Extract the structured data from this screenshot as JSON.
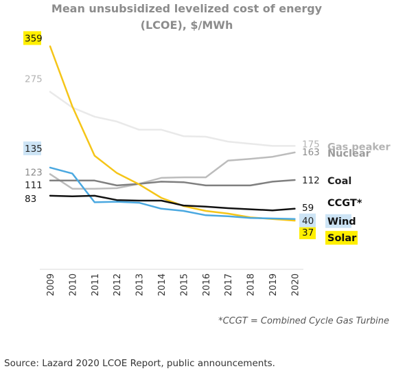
{
  "chart_data": {
    "type": "line",
    "title": "Mean unsubsidized levelized cost of energy (LCOE), $/MWh",
    "title_lines": [
      "Mean unsubsidized levelized cost of energy",
      "(LCOE), $/MWh"
    ],
    "x": [
      "2009",
      "2010",
      "2011",
      "2012",
      "2013",
      "2014",
      "2015",
      "2016",
      "2017",
      "2018",
      "2019",
      "2020"
    ],
    "ylim": [
      0,
      380
    ],
    "grid": false,
    "legend": "direct labels at right end of lines",
    "series": [
      {
        "name": "Gas peaker",
        "color": "#e9e9e9",
        "label_color": "#b3b3b3",
        "start_color": "#b3b3b3",
        "end_color": "#b3b3b3",
        "values": [
          275,
          246,
          229,
          220,
          205,
          205,
          193,
          192,
          183,
          179,
          175,
          175
        ],
        "start_label": "275",
        "end_label": "175",
        "start_highlight": "",
        "end_highlight": "",
        "label_highlight": ""
      },
      {
        "name": "Nuclear",
        "color": "#bcbcbc",
        "label_color": "#9b9b9b",
        "start_color": "#8a8a8a",
        "end_color": "#8a8a8a",
        "values": [
          123,
          96,
          96,
          97,
          105,
          116,
          117,
          117,
          148,
          151,
          155,
          163
        ],
        "start_label": "123",
        "end_label": "163",
        "start_highlight": "",
        "end_highlight": "",
        "label_highlight": ""
      },
      {
        "name": "Coal",
        "color": "#7f7f7f",
        "label_color": "#222222",
        "start_color": "#222222",
        "end_color": "#222222",
        "values": [
          111,
          111,
          111,
          102,
          105,
          109,
          108,
          102,
          102,
          102,
          109,
          112
        ],
        "start_label": "111",
        "end_label": "112",
        "start_highlight": "",
        "end_highlight": "",
        "label_highlight": ""
      },
      {
        "name": "Solar",
        "color": "#f5c518",
        "label_color": "#111111",
        "start_color": "#111111",
        "end_color": "#111111",
        "values": [
          359,
          248,
          157,
          125,
          104,
          79,
          64,
          55,
          50,
          43,
          40,
          37
        ],
        "start_label": "359",
        "end_label": "37",
        "start_highlight": "#ffef00",
        "end_highlight": "#ffef00",
        "label_highlight": "#ffef00"
      },
      {
        "name": "Wind",
        "color": "#4aa8e0",
        "label_color": "#111111",
        "start_color": "#222222",
        "end_color": "#222222",
        "values": [
          135,
          124,
          71,
          72,
          70,
          59,
          55,
          47,
          45,
          42,
          41,
          40
        ],
        "start_label": "135",
        "end_label": "40",
        "start_highlight": "#cde4f5",
        "end_highlight": "#cde4f5",
        "label_highlight": "#cde4f5"
      },
      {
        "name": "CCGT*",
        "color": "#111111",
        "label_color": "#111111",
        "start_color": "#111111",
        "end_color": "#111111",
        "values": [
          83,
          82,
          83,
          75,
          74,
          74,
          65,
          63,
          60,
          58,
          56,
          59
        ],
        "start_label": "83",
        "end_label": "59",
        "start_highlight": "",
        "end_highlight": "",
        "label_highlight": ""
      }
    ],
    "footnote": "*CCGT = Combined Cycle Gas Turbine",
    "source": "Source: Lazard 2020 LCOE Report, public announcements."
  }
}
